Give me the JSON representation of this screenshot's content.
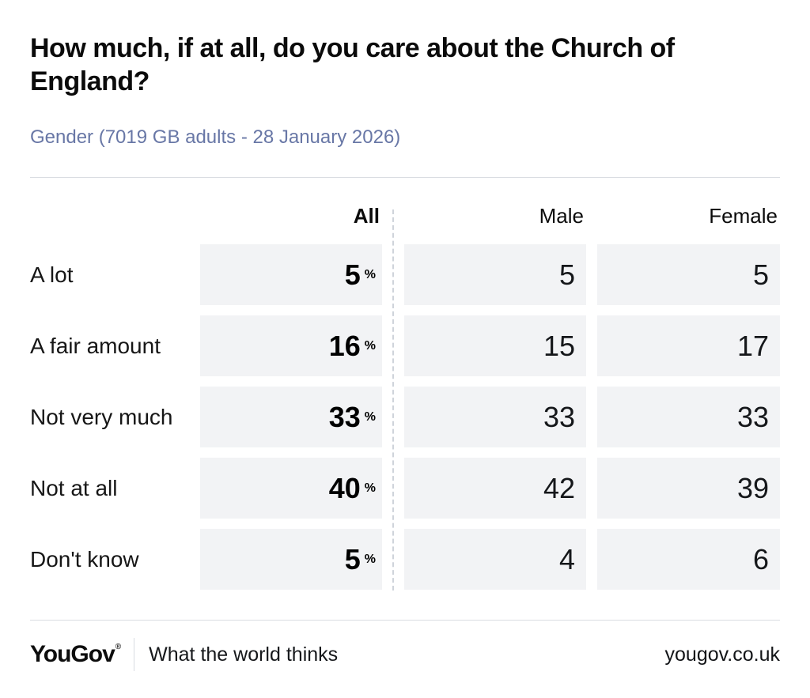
{
  "header": {
    "title": "How much, if at all, do you care about the Church of England?",
    "subtitle": "Gender (7019 GB adults - 28 January 2026)"
  },
  "chart_data": {
    "type": "table",
    "title": "How much, if at all, do you care about the Church of England?",
    "subtitle": "Gender (7019 GB adults - 28 January 2026)",
    "categories": [
      "A lot",
      "A fair amount",
      "Not very much",
      "Not at all",
      "Don't know"
    ],
    "series": [
      {
        "name": "All",
        "values": [
          5,
          16,
          33,
          40,
          5
        ],
        "unit": "%"
      },
      {
        "name": "Male",
        "values": [
          5,
          15,
          33,
          42,
          4
        ]
      },
      {
        "name": "Female",
        "values": [
          5,
          17,
          33,
          39,
          6
        ]
      }
    ],
    "layout": {
      "all_column_bold": true,
      "value_alignment": "right",
      "column_divider": "dashed"
    }
  },
  "table": {
    "percent_suffix": "%"
  },
  "footer": {
    "logo_text": "YouGov",
    "registered_mark": "®",
    "tagline": "What the world thinks",
    "url": "yougov.co.uk"
  },
  "colors": {
    "subtitle_text": "#6877a6",
    "cell_background": "#f2f3f5",
    "rule": "#dadde2",
    "dashed_divider": "#cfd4db",
    "text": "#0c0c0c"
  }
}
